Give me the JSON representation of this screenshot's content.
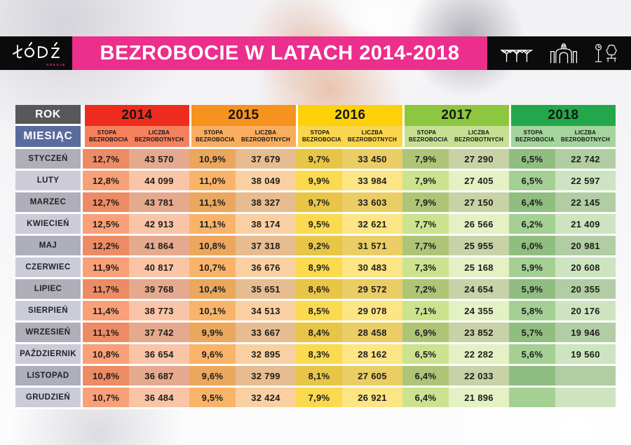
{
  "header": {
    "logo": {
      "text": "ŁÓDŹ",
      "subtext": "KREUJE"
    },
    "title": "BEZROBOCIE W LATACH 2014-2018",
    "icons": [
      "unicorn-stable-icon",
      "gate-icon",
      "park-clock-tree-bench-icon"
    ],
    "colors": {
      "banner_pink": "#EC2E8C",
      "box_black": "#0B0B0C"
    }
  },
  "table": {
    "corner_row_label": "ROK",
    "corner_col_label": "MIESIĄC",
    "sub_headers": {
      "rate": "STOPA BEZROBOCIA",
      "count": "LICZBA BEZROBOTNYCH"
    },
    "palette": {
      "rok_bg": "#57585A",
      "miesiac_bg": "#5A6B9E",
      "month_odd": "#AFAFBA",
      "month_even": "#CBCCD8",
      "years": [
        {
          "header": "#EF2B1E",
          "sub": "#F5815F",
          "odd": [
            "#EC8B64",
            "#E5A98E"
          ],
          "even": [
            "#F9A078",
            "#FAC4A7"
          ]
        },
        {
          "header": "#F6921E",
          "sub": "#F9AD61",
          "odd": [
            "#EBA75E",
            "#E6BC90"
          ],
          "even": [
            "#F9B46A",
            "#FAD0A2"
          ]
        },
        {
          "header": "#FDD10A",
          "sub": "#FAD64E",
          "odd": [
            "#E8C546",
            "#EACE65"
          ],
          "even": [
            "#FBDA4F",
            "#FCE584"
          ]
        },
        {
          "header": "#8DC63F",
          "sub": "#C6DF92",
          "odd": [
            "#B0C478",
            "#C8D2A6"
          ],
          "even": [
            "#CDE28F",
            "#E4F1C4"
          ]
        },
        {
          "header": "#22A84B",
          "sub": "#A5D49E",
          "odd": [
            "#90BD80",
            "#B1CDA3"
          ],
          "even": [
            "#A4D094",
            "#CDE4C0"
          ]
        }
      ]
    }
  },
  "chart_data": {
    "type": "table",
    "title": "BEZROBOCIE W LATACH 2014-2018",
    "months": [
      "STYCZEŃ",
      "LUTY",
      "MARZEC",
      "KWIECIEŃ",
      "MAJ",
      "CZERWIEC",
      "LIPIEC",
      "SIERPIEŃ",
      "WRZESIEŃ",
      "PAŹDZIERNIK",
      "LISTOPAD",
      "GRUDZIEŃ"
    ],
    "series": [
      {
        "year": "2014",
        "stopa_bezrobocia": [
          "12,7%",
          "12,8%",
          "12,7%",
          "12,5%",
          "12,2%",
          "11,9%",
          "11,7%",
          "11,4%",
          "11,1%",
          "10,8%",
          "10,8%",
          "10,7%"
        ],
        "liczba_bezrobotnych": [
          "43 570",
          "44 099",
          "43 781",
          "42 913",
          "41 864",
          "40 817",
          "39 768",
          "38 773",
          "37 742",
          "36 654",
          "36 687",
          "36 484"
        ]
      },
      {
        "year": "2015",
        "stopa_bezrobocia": [
          "10,9%",
          "11,0%",
          "11,1%",
          "11,1%",
          "10,8%",
          "10,7%",
          "10,4%",
          "10,1%",
          "9,9%",
          "9,6%",
          "9,6%",
          "9,5%"
        ],
        "liczba_bezrobotnych": [
          "37 679",
          "38 049",
          "38 327",
          "38 174",
          "37 318",
          "36 676",
          "35 651",
          "34 513",
          "33 667",
          "32 895",
          "32 799",
          "32 424"
        ]
      },
      {
        "year": "2016",
        "stopa_bezrobocia": [
          "9,7%",
          "9,9%",
          "9,7%",
          "9,5%",
          "9,2%",
          "8,9%",
          "8,6%",
          "8,5%",
          "8,4%",
          "8,3%",
          "8,1%",
          "7,9%"
        ],
        "liczba_bezrobotnych": [
          "33 450",
          "33 984",
          "33 603",
          "32 621",
          "31 571",
          "30 483",
          "29 572",
          "29 078",
          "28 458",
          "28 162",
          "27 605",
          "26 921"
        ]
      },
      {
        "year": "2017",
        "stopa_bezrobocia": [
          "7,9%",
          "7,9%",
          "7,9%",
          "7,7%",
          "7,7%",
          "7,3%",
          "7,2%",
          "7,1%",
          "6,9%",
          "6,5%",
          "6,4%",
          "6,4%"
        ],
        "liczba_bezrobotnych": [
          "27 290",
          "27 405",
          "27 150",
          "26 566",
          "25 955",
          "25 168",
          "24 654",
          "24 355",
          "23 852",
          "22 282",
          "22 033",
          "21 896"
        ]
      },
      {
        "year": "2018",
        "stopa_bezrobocia": [
          "6,5%",
          "6,5%",
          "6,4%",
          "6,2%",
          "6,0%",
          "5,9%",
          "5,9%",
          "5,8%",
          "5,7%",
          "5,6%",
          "",
          ""
        ],
        "liczba_bezrobotnych": [
          "22 742",
          "22 597",
          "22 145",
          "21 409",
          "20 981",
          "20 608",
          "20 355",
          "20 176",
          "19 946",
          "19 560",
          "",
          ""
        ]
      }
    ]
  }
}
